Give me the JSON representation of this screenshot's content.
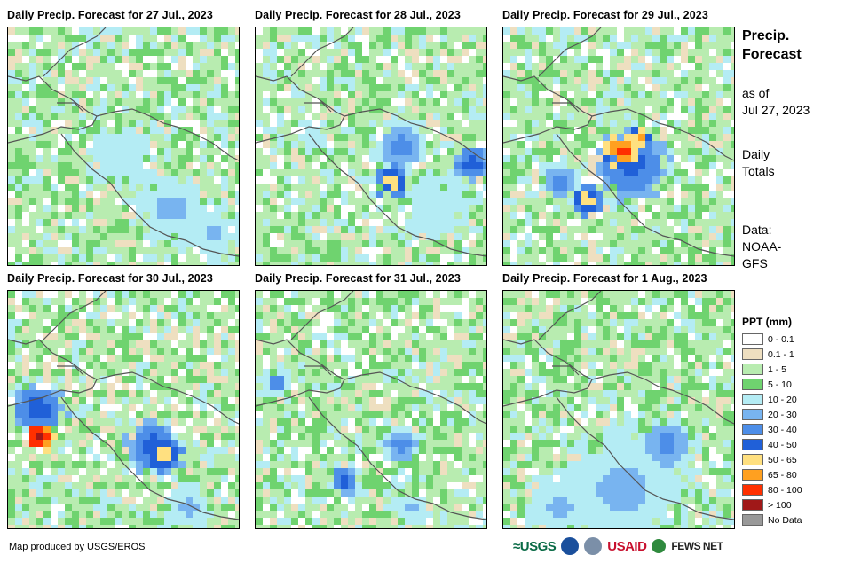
{
  "panels": [
    {
      "title": "Daily Precip. Forecast for 27 Jul., 2023"
    },
    {
      "title": "Daily Precip. Forecast for 28 Jul., 2023"
    },
    {
      "title": "Daily Precip. Forecast for 29 Jul., 2023"
    },
    {
      "title": "Daily Precip. Forecast for 30 Jul., 2023"
    },
    {
      "title": "Daily Precip. Forecast for 31 Jul., 2023"
    },
    {
      "title": "Daily Precip. Forecast for 1 Aug., 2023"
    }
  ],
  "sidebar": {
    "title_line1": "Precip.",
    "title_line2": "Forecast",
    "asof_line1": "as of",
    "asof_line2": "Jul 27, 2023",
    "daily_line1": "Daily",
    "daily_line2": "Totals",
    "data_line1": "Data:",
    "data_line2": "NOAA-",
    "data_line3": "GFS"
  },
  "legend": {
    "title": "PPT (mm)",
    "items": [
      {
        "label": "0 - 0.1",
        "color": "#ffffff"
      },
      {
        "label": "0.1 - 1",
        "color": "#eedfc0"
      },
      {
        "label": "1 - 5",
        "color": "#b8ecb0"
      },
      {
        "label": "5 - 10",
        "color": "#6fd36f"
      },
      {
        "label": "10 - 20",
        "color": "#b4ecf4"
      },
      {
        "label": "20 - 30",
        "color": "#78b4f0"
      },
      {
        "label": "30 - 40",
        "color": "#4d8ee8"
      },
      {
        "label": "40 - 50",
        "color": "#2060d8"
      },
      {
        "label": "50 - 65",
        "color": "#ffe080"
      },
      {
        "label": "65 - 80",
        "color": "#ffa020"
      },
      {
        "label": "80 - 100",
        "color": "#ff3000"
      },
      {
        "label": "> 100",
        "color": "#a01818"
      },
      {
        "label": "No Data",
        "color": "#999999"
      }
    ]
  },
  "footer": {
    "credit": "Map produced by USGS/EROS",
    "logo_usgs": "≈USGS",
    "logo_usaid": "USAID",
    "logo_fews": "FEWS NET"
  }
}
